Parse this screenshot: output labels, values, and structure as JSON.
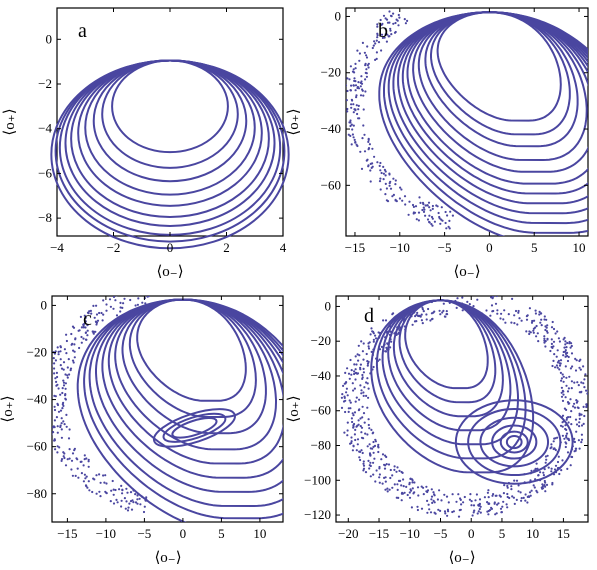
{
  "figure": {
    "line_color": "#4a46a0"
  },
  "chart_data": [
    {
      "panel_label": "a",
      "type": "line",
      "xlabel": "⟨o₋⟩",
      "ylabel": "⟨o₊⟩",
      "xlim": [
        -4,
        4
      ],
      "ylim": [
        -8.8,
        1.4
      ],
      "xticks": [
        -4,
        -2,
        0,
        2,
        4
      ],
      "yticks": [
        0,
        -2,
        -4,
        -6,
        -8
      ],
      "grid": false,
      "series": [
        {
          "shape": "circle",
          "center": [
            0,
            -3.0
          ],
          "radius": 2.05
        },
        {
          "shape": "circle",
          "center": [
            0,
            -3.35
          ],
          "radius": 2.4
        },
        {
          "shape": "circle",
          "center": [
            0,
            -3.65
          ],
          "radius": 2.7
        },
        {
          "shape": "circle",
          "center": [
            0,
            -3.95
          ],
          "radius": 3.0
        },
        {
          "shape": "circle",
          "center": [
            0,
            -4.2
          ],
          "radius": 3.25
        },
        {
          "shape": "circle",
          "center": [
            0,
            -4.45
          ],
          "radius": 3.5
        },
        {
          "shape": "circle",
          "center": [
            0,
            -4.65
          ],
          "radius": 3.7
        },
        {
          "shape": "circle",
          "center": [
            0,
            -4.85
          ],
          "radius": 3.9
        },
        {
          "shape": "circle",
          "center": [
            0,
            -5.0
          ],
          "radius": 4.05
        },
        {
          "shape": "circle",
          "center": [
            0,
            -5.15
          ],
          "radius": 4.2
        }
      ]
    },
    {
      "panel_label": "b",
      "type": "line",
      "xlabel": "⟨o₋⟩",
      "ylabel": "⟨o₊⟩",
      "xlim": [
        -16,
        11
      ],
      "ylim": [
        -78,
        3
      ],
      "xticks": [
        -15,
        -10,
        -5,
        0,
        5,
        10
      ],
      "yticks": [
        0,
        -20,
        -40,
        -60
      ],
      "grid": false,
      "orbit_levels": [
        0.55,
        0.62,
        0.68,
        0.75,
        0.81,
        0.87,
        0.92,
        0.97,
        1.02,
        1.07,
        1.12,
        1.17
      ],
      "scatter_zone": "lower-left"
    },
    {
      "panel_label": "c",
      "type": "line",
      "xlabel": "⟨o₋⟩",
      "ylabel": "⟨o₊⟩",
      "xlim": [
        -17,
        13
      ],
      "ylim": [
        -92,
        4
      ],
      "xticks": [
        -15,
        -10,
        -5,
        0,
        5,
        10
      ],
      "yticks": [
        0,
        -20,
        -40,
        -60,
        -80
      ],
      "grid": false,
      "orbit_levels": [
        0.5,
        0.58,
        0.66,
        0.74,
        0.81,
        0.88,
        0.95,
        1.02,
        1.08,
        1.15
      ],
      "island": {
        "center": [
          1.5,
          -52
        ],
        "rx": [
          5.5,
          4.2,
          3.0
        ],
        "ry": [
          6.0,
          4.4,
          3.0
        ]
      },
      "scatter_zone": "left"
    },
    {
      "panel_label": "d",
      "type": "line",
      "xlabel": "⟨o₋⟩",
      "ylabel": "⟨o₊⟩",
      "xlim": [
        -22,
        19
      ],
      "ylim": [
        -124,
        6
      ],
      "xticks": [
        -20,
        -15,
        -10,
        -5,
        0,
        5,
        10,
        15
      ],
      "yticks": [
        0,
        -20,
        -40,
        -60,
        -80,
        -100,
        -120
      ],
      "grid": false,
      "orbit_levels": [
        0.5,
        0.58,
        0.66,
        0.74,
        0.82,
        0.9,
        0.98
      ],
      "island": {
        "center": [
          7,
          -78
        ],
        "rx": [
          9.5,
          7.5,
          5.5,
          3.6,
          2.2,
          1.2
        ],
        "ry": [
          24,
          19,
          14,
          9.5,
          6,
          3.5
        ]
      },
      "scatter_zone": "ring"
    }
  ]
}
